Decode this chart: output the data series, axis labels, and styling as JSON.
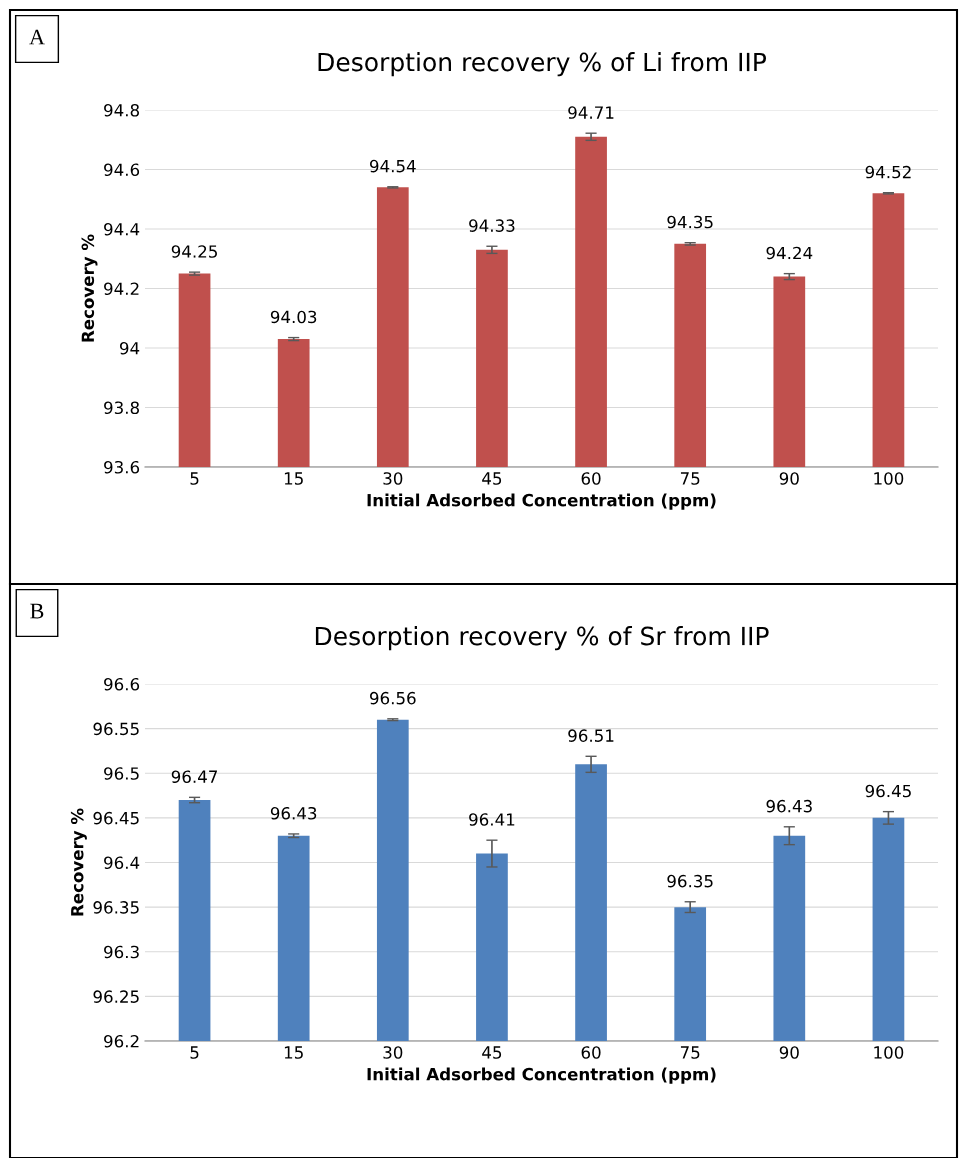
{
  "chart_data": [
    {
      "type": "bar",
      "title": "Desorption recovery % of Li from IIP",
      "xlabel": "Initial Adsorbed Concentration (ppm)",
      "ylabel": "Recovery %",
      "annotations": [
        "A"
      ],
      "categories": [
        "5",
        "15",
        "30",
        "45",
        "60",
        "75",
        "90",
        "100"
      ],
      "values": [
        94.25,
        94.03,
        94.54,
        94.33,
        94.71,
        94.35,
        94.24,
        94.52
      ],
      "errors": [
        0.005,
        0.005,
        0.002,
        0.012,
        0.012,
        0.004,
        0.01,
        0.002
      ],
      "color": "#c0504d",
      "ylim": [
        93.6,
        94.8
      ],
      "yticks": [
        93.6,
        93.8,
        94,
        94.2,
        94.4,
        94.6,
        94.8
      ],
      "grid": "y",
      "data_labels": true
    },
    {
      "type": "bar",
      "title": "Desorption recovery % of Sr from IIP",
      "xlabel": "Initial Adsorbed Concentration (ppm)",
      "ylabel": "Recovery %",
      "annotations": [
        "B"
      ],
      "categories": [
        "5",
        "15",
        "30",
        "45",
        "60",
        "75",
        "90",
        "100"
      ],
      "values": [
        96.47,
        96.43,
        96.56,
        96.41,
        96.51,
        96.35,
        96.43,
        96.45
      ],
      "errors": [
        0.003,
        0.002,
        0.001,
        0.015,
        0.009,
        0.006,
        0.01,
        0.007
      ],
      "color": "#4f81bd",
      "ylim": [
        96.2,
        96.6
      ],
      "yticks": [
        96.2,
        96.25,
        96.3,
        96.35,
        96.4,
        96.45,
        96.5,
        96.55,
        96.6
      ],
      "grid": "y",
      "data_labels": true
    }
  ]
}
